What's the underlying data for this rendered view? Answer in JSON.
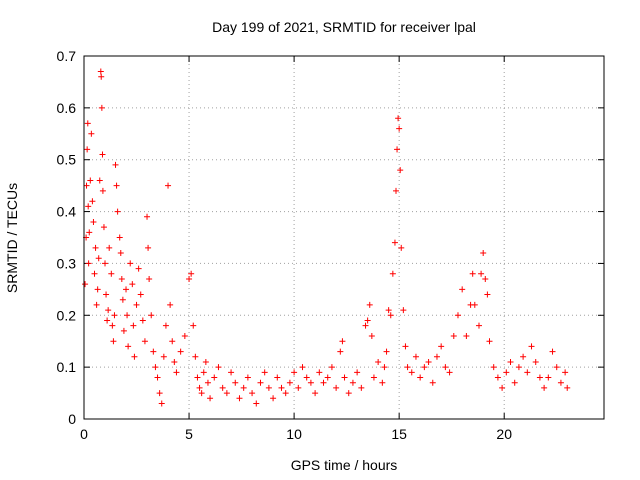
{
  "chart_data": {
    "type": "scatter",
    "title": "Day 199 of 2021, SRMTID for receiver lpal",
    "xlabel": "GPS time / hours",
    "ylabel": "SRMTID / TECUs",
    "xlim": [
      0,
      24.75
    ],
    "ylim": [
      0,
      0.7
    ],
    "xticks": [
      0,
      5,
      10,
      15,
      20
    ],
    "xtick_labels": [
      "0",
      "5",
      "10",
      "15",
      "20"
    ],
    "yticks": [
      0,
      0.1,
      0.2,
      0.3,
      0.4,
      0.5,
      0.6,
      0.7
    ],
    "ytick_labels": [
      "0",
      "0.1",
      "0.2",
      "0.3",
      "0.4",
      "0.5",
      "0.6",
      "0.7"
    ],
    "grid": true,
    "marker": "+",
    "color": "#ff0000",
    "series": [
      {
        "name": "lpal",
        "points": [
          [
            0.05,
            0.26
          ],
          [
            0.1,
            0.35
          ],
          [
            0.12,
            0.45
          ],
          [
            0.15,
            0.52
          ],
          [
            0.18,
            0.57
          ],
          [
            0.2,
            0.41
          ],
          [
            0.22,
            0.3
          ],
          [
            0.25,
            0.36
          ],
          [
            0.3,
            0.46
          ],
          [
            0.35,
            0.55
          ],
          [
            0.4,
            0.42
          ],
          [
            0.45,
            0.38
          ],
          [
            0.5,
            0.28
          ],
          [
            0.55,
            0.33
          ],
          [
            0.6,
            0.22
          ],
          [
            0.65,
            0.25
          ],
          [
            0.7,
            0.31
          ],
          [
            0.75,
            0.46
          ],
          [
            0.8,
            0.67
          ],
          [
            0.82,
            0.66
          ],
          [
            0.85,
            0.6
          ],
          [
            0.88,
            0.51
          ],
          [
            0.9,
            0.44
          ],
          [
            0.95,
            0.37
          ],
          [
            1.0,
            0.3
          ],
          [
            1.05,
            0.24
          ],
          [
            1.1,
            0.19
          ],
          [
            1.15,
            0.21
          ],
          [
            1.2,
            0.33
          ],
          [
            1.3,
            0.28
          ],
          [
            1.35,
            0.18
          ],
          [
            1.4,
            0.15
          ],
          [
            1.45,
            0.2
          ],
          [
            1.5,
            0.49
          ],
          [
            1.55,
            0.45
          ],
          [
            1.6,
            0.4
          ],
          [
            1.7,
            0.35
          ],
          [
            1.75,
            0.32
          ],
          [
            1.8,
            0.27
          ],
          [
            1.85,
            0.23
          ],
          [
            1.9,
            0.17
          ],
          [
            2.0,
            0.25
          ],
          [
            2.05,
            0.2
          ],
          [
            2.1,
            0.14
          ],
          [
            2.2,
            0.3
          ],
          [
            2.3,
            0.26
          ],
          [
            2.35,
            0.18
          ],
          [
            2.4,
            0.12
          ],
          [
            2.5,
            0.22
          ],
          [
            2.6,
            0.29
          ],
          [
            2.7,
            0.24
          ],
          [
            2.8,
            0.19
          ],
          [
            2.9,
            0.15
          ],
          [
            3.0,
            0.39
          ],
          [
            3.05,
            0.33
          ],
          [
            3.1,
            0.27
          ],
          [
            3.2,
            0.2
          ],
          [
            3.3,
            0.13
          ],
          [
            3.4,
            0.1
          ],
          [
            3.5,
            0.08
          ],
          [
            3.6,
            0.05
          ],
          [
            3.7,
            0.03
          ],
          [
            3.8,
            0.12
          ],
          [
            3.9,
            0.18
          ],
          [
            4.0,
            0.45
          ],
          [
            4.1,
            0.22
          ],
          [
            4.2,
            0.15
          ],
          [
            4.3,
            0.11
          ],
          [
            4.4,
            0.09
          ],
          [
            4.6,
            0.13
          ],
          [
            4.8,
            0.16
          ],
          [
            5.0,
            0.27
          ],
          [
            5.1,
            0.28
          ],
          [
            5.2,
            0.18
          ],
          [
            5.3,
            0.12
          ],
          [
            5.4,
            0.08
          ],
          [
            5.5,
            0.06
          ],
          [
            5.6,
            0.05
          ],
          [
            5.7,
            0.09
          ],
          [
            5.8,
            0.11
          ],
          [
            5.9,
            0.07
          ],
          [
            6.0,
            0.04
          ],
          [
            6.2,
            0.08
          ],
          [
            6.4,
            0.1
          ],
          [
            6.6,
            0.06
          ],
          [
            6.8,
            0.05
          ],
          [
            7.0,
            0.09
          ],
          [
            7.2,
            0.07
          ],
          [
            7.4,
            0.04
          ],
          [
            7.6,
            0.06
          ],
          [
            7.8,
            0.08
          ],
          [
            8.0,
            0.05
          ],
          [
            8.2,
            0.03
          ],
          [
            8.4,
            0.07
          ],
          [
            8.6,
            0.09
          ],
          [
            8.8,
            0.06
          ],
          [
            9.0,
            0.04
          ],
          [
            9.2,
            0.08
          ],
          [
            9.4,
            0.06
          ],
          [
            9.6,
            0.05
          ],
          [
            9.8,
            0.07
          ],
          [
            10.0,
            0.09
          ],
          [
            10.2,
            0.06
          ],
          [
            10.4,
            0.1
          ],
          [
            10.6,
            0.08
          ],
          [
            10.8,
            0.07
          ],
          [
            11.0,
            0.05
          ],
          [
            11.2,
            0.09
          ],
          [
            11.4,
            0.07
          ],
          [
            11.6,
            0.08
          ],
          [
            11.8,
            0.1
          ],
          [
            12.0,
            0.06
          ],
          [
            12.2,
            0.13
          ],
          [
            12.3,
            0.15
          ],
          [
            12.4,
            0.08
          ],
          [
            12.6,
            0.05
          ],
          [
            12.8,
            0.07
          ],
          [
            13.0,
            0.09
          ],
          [
            13.2,
            0.06
          ],
          [
            13.4,
            0.18
          ],
          [
            13.5,
            0.19
          ],
          [
            13.6,
            0.22
          ],
          [
            13.7,
            0.16
          ],
          [
            13.8,
            0.08
          ],
          [
            14.0,
            0.11
          ],
          [
            14.2,
            0.07
          ],
          [
            14.3,
            0.1
          ],
          [
            14.4,
            0.13
          ],
          [
            14.5,
            0.21
          ],
          [
            14.6,
            0.2
          ],
          [
            14.7,
            0.28
          ],
          [
            14.8,
            0.34
          ],
          [
            14.85,
            0.44
          ],
          [
            14.9,
            0.52
          ],
          [
            14.95,
            0.58
          ],
          [
            15.0,
            0.56
          ],
          [
            15.05,
            0.48
          ],
          [
            15.1,
            0.33
          ],
          [
            15.2,
            0.21
          ],
          [
            15.3,
            0.14
          ],
          [
            15.4,
            0.1
          ],
          [
            15.6,
            0.09
          ],
          [
            15.8,
            0.12
          ],
          [
            16.0,
            0.08
          ],
          [
            16.2,
            0.1
          ],
          [
            16.4,
            0.11
          ],
          [
            16.6,
            0.07
          ],
          [
            16.8,
            0.12
          ],
          [
            17.0,
            0.14
          ],
          [
            17.2,
            0.1
          ],
          [
            17.4,
            0.09
          ],
          [
            17.6,
            0.16
          ],
          [
            17.8,
            0.2
          ],
          [
            18.0,
            0.25
          ],
          [
            18.2,
            0.16
          ],
          [
            18.4,
            0.22
          ],
          [
            18.5,
            0.28
          ],
          [
            18.6,
            0.22
          ],
          [
            18.8,
            0.18
          ],
          [
            18.9,
            0.28
          ],
          [
            19.0,
            0.32
          ],
          [
            19.1,
            0.27
          ],
          [
            19.2,
            0.24
          ],
          [
            19.3,
            0.15
          ],
          [
            19.5,
            0.1
          ],
          [
            19.7,
            0.08
          ],
          [
            19.9,
            0.06
          ],
          [
            20.1,
            0.09
          ],
          [
            20.3,
            0.11
          ],
          [
            20.5,
            0.07
          ],
          [
            20.7,
            0.1
          ],
          [
            20.9,
            0.12
          ],
          [
            21.1,
            0.09
          ],
          [
            21.3,
            0.14
          ],
          [
            21.5,
            0.11
          ],
          [
            21.7,
            0.08
          ],
          [
            21.9,
            0.06
          ],
          [
            22.1,
            0.08
          ],
          [
            22.3,
            0.13
          ],
          [
            22.5,
            0.1
          ],
          [
            22.7,
            0.07
          ],
          [
            22.9,
            0.09
          ],
          [
            23.0,
            0.06
          ]
        ]
      }
    ]
  }
}
